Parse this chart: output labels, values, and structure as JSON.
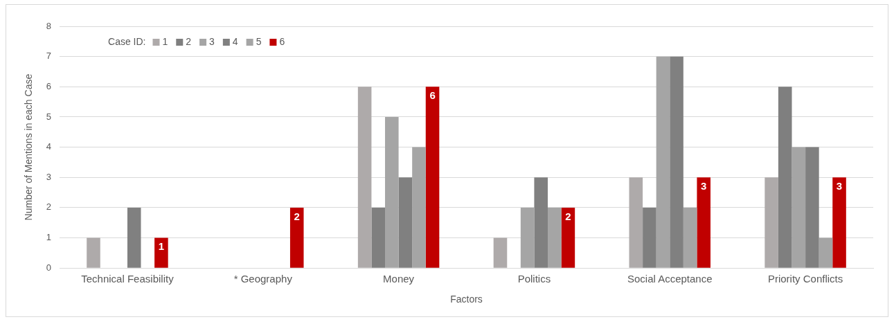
{
  "chart_data": {
    "type": "bar",
    "xlabel": "Factors",
    "ylabel": "Number of Mentions in each Case",
    "legend_title": "Case ID:",
    "categories": [
      "Technical Feasibility",
      "* Geography",
      "Money",
      "Politics",
      "Social Acceptance",
      "Priority Conflicts"
    ],
    "series": [
      {
        "name": "1",
        "color": "#aeaaaa",
        "values": [
          1,
          0,
          6,
          1,
          3,
          3
        ]
      },
      {
        "name": "2",
        "color": "#7f7f7f",
        "values": [
          0,
          0,
          2,
          0,
          2,
          6
        ]
      },
      {
        "name": "3",
        "color": "#a5a5a5",
        "values": [
          0,
          0,
          5,
          2,
          7,
          4
        ]
      },
      {
        "name": "4",
        "color": "#808080",
        "values": [
          2,
          0,
          3,
          3,
          7,
          4
        ]
      },
      {
        "name": "5",
        "color": "#a5a5a5",
        "values": [
          0,
          0,
          4,
          2,
          2,
          1
        ]
      },
      {
        "name": "6",
        "color": "#c00000",
        "values": [
          1,
          2,
          6,
          2,
          3,
          3
        ],
        "value_labels": [
          "1",
          "2",
          "6",
          "2",
          "3",
          "3"
        ]
      }
    ],
    "ylim": [
      0,
      8
    ],
    "yticks": [
      0,
      1,
      2,
      3,
      4,
      5,
      6,
      7,
      8
    ],
    "grid": "y",
    "legend": "top left"
  }
}
